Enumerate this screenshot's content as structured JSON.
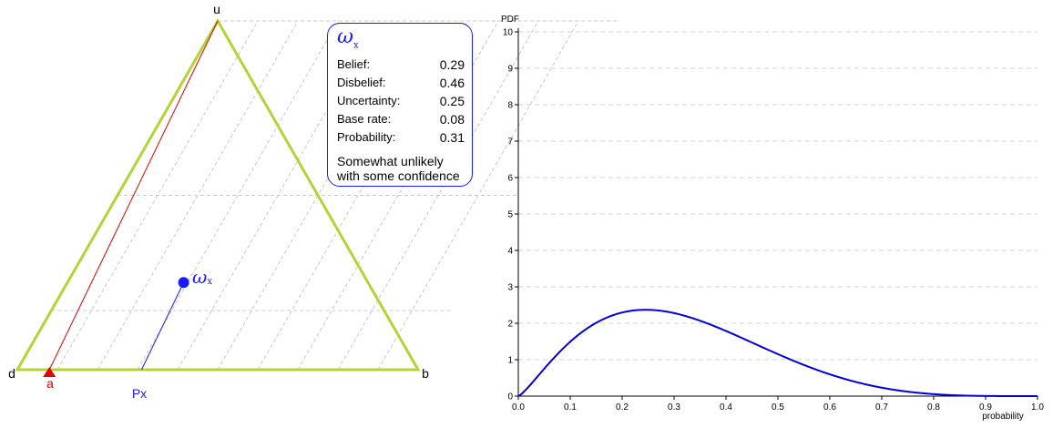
{
  "triangle": {
    "vertex_labels": {
      "u": "u",
      "d": "d",
      "b": "b"
    },
    "base_rate_label": "a",
    "projection_label": "Px",
    "opinion_symbol": "ω",
    "opinion_subscript": "x"
  },
  "opinion": {
    "belief": 0.29,
    "disbelief": 0.46,
    "uncertainty": 0.25,
    "base_rate": 0.08,
    "probability": 0.31
  },
  "opinion_box": {
    "symbol": "ω",
    "subscript": "x",
    "rows": [
      {
        "label": "Belief:",
        "value": "0.29"
      },
      {
        "label": "Disbelief:",
        "value": "0.46"
      },
      {
        "label": "Uncertainty:",
        "value": "0.25"
      },
      {
        "label": "Base rate:",
        "value": "0.08"
      },
      {
        "label": "Probability:",
        "value": "0.31"
      }
    ],
    "description_line1": "Somewhat unlikely",
    "description_line2": "with some confidence"
  },
  "colors": {
    "triangle": "#b5d334",
    "base_rate": "#e00000",
    "opinion": "#1a1aff",
    "curve": "#0000e0",
    "grid": "#c8c8c8"
  },
  "chart_data": {
    "type": "line",
    "ylabel": "PDF",
    "xlabel": "probability",
    "xlim": [
      0,
      1
    ],
    "ylim": [
      0,
      10
    ],
    "x_ticks": [
      "0.0",
      "0.1",
      "0.2",
      "0.3",
      "0.4",
      "0.5",
      "0.6",
      "0.7",
      "0.8",
      "0.9",
      "1.0"
    ],
    "y_ticks": [
      "0",
      "1",
      "2",
      "3",
      "4",
      "5",
      "6",
      "7",
      "8",
      "9",
      "10"
    ],
    "grid": true,
    "series": [
      {
        "distribution": "beta",
        "alpha": 2.3,
        "beta": 5.0
      }
    ]
  }
}
